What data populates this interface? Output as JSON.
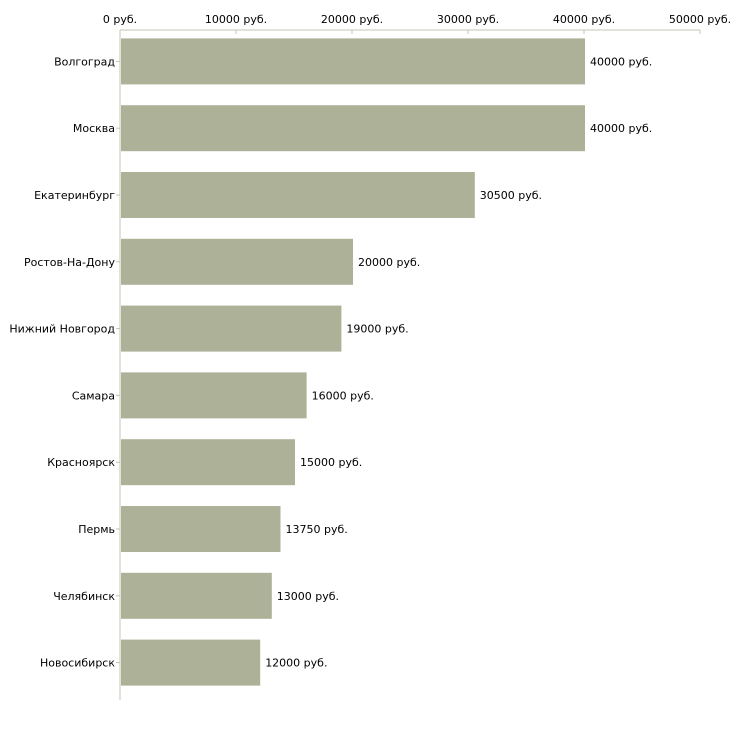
{
  "chart_data": {
    "type": "bar",
    "orientation": "horizontal",
    "title": "",
    "xlabel": "",
    "ylabel": "",
    "xlim": [
      0,
      50000
    ],
    "x_ticks": [
      0,
      10000,
      20000,
      30000,
      40000,
      50000
    ],
    "x_tick_labels": [
      "0 руб.",
      "10000 руб.",
      "20000 руб.",
      "30000 руб.",
      "40000 руб.",
      "50000 руб."
    ],
    "x_axis_position": "top",
    "grid": false,
    "categories": [
      "Волгоград",
      "Москва",
      "Екатеринбург",
      "Ростов-На-Дону",
      "Нижний Новгород",
      "Самара",
      "Красноярск",
      "Пермь",
      "Челябинск",
      "Новосибирск"
    ],
    "values": [
      40000,
      40000,
      30500,
      20000,
      19000,
      16000,
      15000,
      13750,
      13000,
      12000
    ],
    "data_labels": [
      "40000 руб.",
      "40000 руб.",
      "30500 руб.",
      "20000 руб.",
      "19000 руб.",
      "16000 руб.",
      "15000 руб.",
      "13750 руб.",
      "13000 руб.",
      "12000 руб."
    ],
    "bar_color": "#acb197",
    "axis_color": "#c4c4b4"
  }
}
